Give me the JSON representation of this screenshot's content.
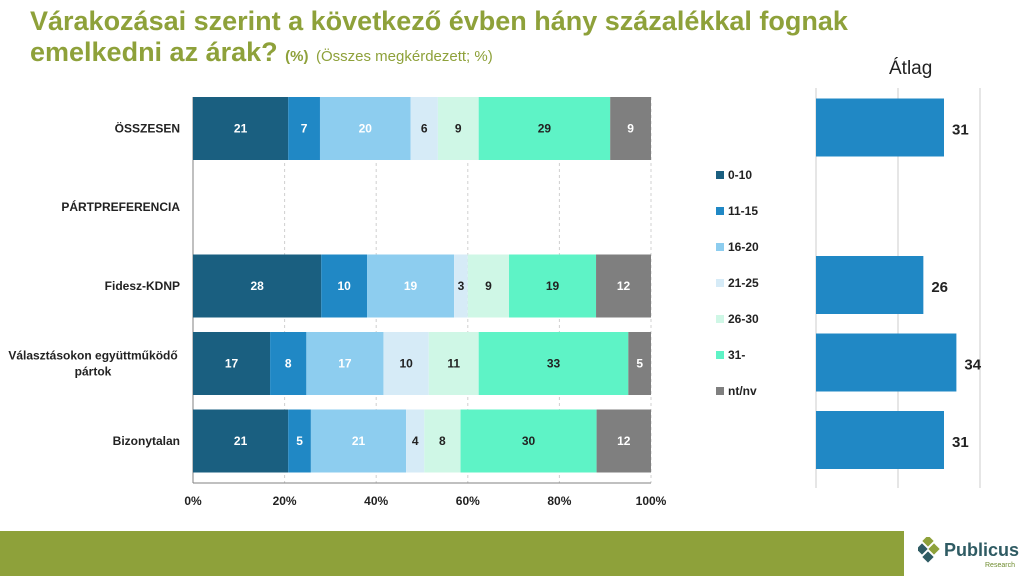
{
  "title": {
    "main": "Várakozásai szerint a következő évben hány százalékkal fognak emelkedni az árak?",
    "sub_bold": "(%)",
    "sub": "(Összes megkérdezett; %)"
  },
  "avg_title": "Átlag",
  "logo": {
    "name": "Publicus",
    "sub": "Research"
  },
  "chart_data": [
    {
      "type": "bar",
      "orientation": "horizontal",
      "stacked": "percent",
      "categories": [
        "ÖSSZESEN",
        "PÁRTPREFERENCIA",
        "Fidesz-KDNP",
        "Választásokon együttműködő pártok",
        "Bizonytalan"
      ],
      "series": [
        {
          "name": "0-10",
          "color": "#1a5f80",
          "values": [
            21,
            null,
            28,
            17,
            21
          ]
        },
        {
          "name": "11-15",
          "color": "#2088c5",
          "values": [
            7,
            null,
            10,
            8,
            5
          ]
        },
        {
          "name": "16-20",
          "color": "#8dcdef",
          "values": [
            20,
            null,
            19,
            17,
            21
          ]
        },
        {
          "name": "21-25",
          "color": "#d6ebf7",
          "values": [
            6,
            null,
            3,
            10,
            4
          ]
        },
        {
          "name": "26-30",
          "color": "#cff7e6",
          "values": [
            9,
            null,
            9,
            11,
            8
          ]
        },
        {
          "name": "31-",
          "color": "#5ef3c6",
          "values": [
            29,
            null,
            19,
            33,
            30
          ]
        },
        {
          "name": "nt/nv",
          "color": "#7f7f7f",
          "values": [
            9,
            null,
            12,
            5,
            12
          ]
        }
      ],
      "xticks": [
        "0%",
        "20%",
        "40%",
        "60%",
        "80%",
        "100%"
      ],
      "xlim": [
        0,
        100
      ],
      "legend_position": "right"
    },
    {
      "type": "bar",
      "orientation": "horizontal",
      "title": "Átlag",
      "categories": [
        "ÖSSZESEN",
        "PÁRTPREFERENCIA",
        "Fidesz-KDNP",
        "Választásokon együttműködő pártok",
        "Bizonytalan"
      ],
      "values": [
        31,
        null,
        26,
        34,
        31
      ],
      "color": "#2088c5",
      "xlim": [
        0,
        40
      ]
    }
  ]
}
